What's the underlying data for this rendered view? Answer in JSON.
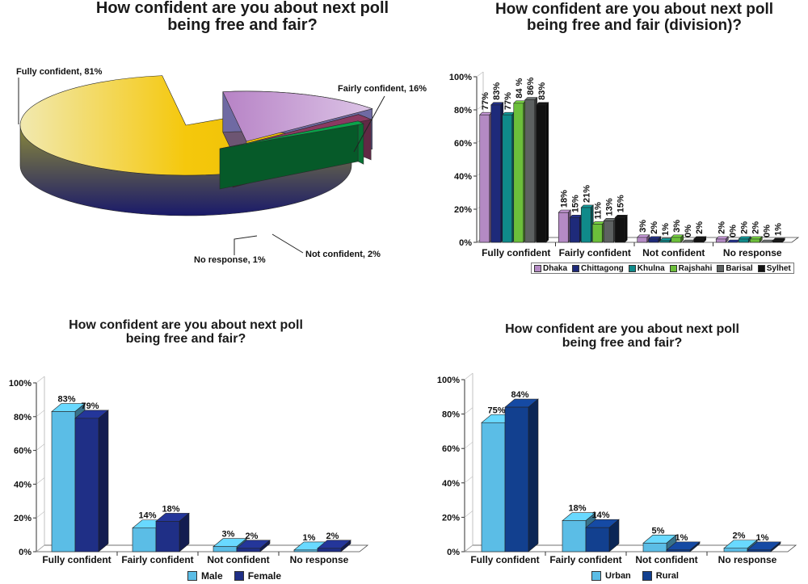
{
  "chart_data": [
    {
      "type": "pie",
      "title": "How confident are you about next poll being free and fair?",
      "slices": [
        {
          "label": "Fully confident, 81%",
          "value": 81,
          "color": "#f2c416"
        },
        {
          "label": "Fairly confident, 16%",
          "value": 16,
          "color": "#c79bd0"
        },
        {
          "label": "Not confident, 2%",
          "value": 2,
          "color": "#8b3a62"
        },
        {
          "label": "No response, 1%",
          "value": 1,
          "color": "#0aa34a"
        }
      ]
    },
    {
      "type": "bar",
      "title": "How confident are you about next poll being free and fair (division)?",
      "categories": [
        "Fully confident",
        "Fairly confident",
        "Not confident",
        "No response"
      ],
      "series": [
        {
          "name": "Dhaka",
          "values": [
            77,
            18,
            3,
            2
          ],
          "color": "#b48ac4"
        },
        {
          "name": "Chittagong",
          "values": [
            83,
            15,
            2,
            0
          ],
          "color": "#1e2a7a"
        },
        {
          "name": "Khulna",
          "values": [
            77,
            21,
            1,
            2
          ],
          "color": "#0f8a8a"
        },
        {
          "name": "Rajshahi",
          "values": [
            84,
            11,
            3,
            2
          ],
          "color": "#6cbf3b"
        },
        {
          "name": "Barisal",
          "values": [
            86,
            13,
            0,
            0
          ],
          "color": "#5d6161"
        },
        {
          "name": "Sylhet",
          "values": [
            83,
            15,
            2,
            1
          ],
          "color": "#111111"
        }
      ],
      "data_labels": [
        [
          "77%",
          "83%",
          "77%",
          "84 %",
          "86%",
          "83%"
        ],
        [
          "18%",
          "15%",
          "21%",
          "11%",
          "13%",
          "15%"
        ],
        [
          "3%",
          "2%",
          "1%",
          "3%",
          "0%",
          "2%"
        ],
        [
          "2%",
          "0%",
          "2%",
          "2%",
          "0%",
          "1%"
        ]
      ],
      "yticks": [
        "0%",
        "20%",
        "40%",
        "60%",
        "80%",
        "100%"
      ],
      "ylim": [
        0,
        100
      ],
      "legend_position": "bottom"
    },
    {
      "type": "bar",
      "title": "How confident are you about next poll being free and fair?",
      "categories": [
        "Fully confident",
        "Fairly confident",
        "Not confident",
        "No response"
      ],
      "series": [
        {
          "name": "Male",
          "values": [
            83,
            14,
            3,
            1
          ],
          "color": "#5bbde6"
        },
        {
          "name": "Female",
          "values": [
            79,
            18,
            2,
            2
          ],
          "color": "#1f2f86"
        }
      ],
      "yticks": [
        "0%",
        "20%",
        "40%",
        "60%",
        "80%",
        "100%"
      ],
      "ylim": [
        0,
        100
      ],
      "legend_position": "bottom"
    },
    {
      "type": "bar",
      "title": "How confident are you about next poll being free and fair?",
      "categories": [
        "Fully confident",
        "Fairly confident",
        "Not confident",
        "No response"
      ],
      "series": [
        {
          "name": "Urban",
          "values": [
            75,
            18,
            5,
            2
          ],
          "color": "#5bbde6"
        },
        {
          "name": "Rural",
          "values": [
            84,
            14,
            1,
            1
          ],
          "color": "#12408f"
        }
      ],
      "yticks": [
        "0%",
        "20%",
        "40%",
        "60%",
        "80%",
        "100%"
      ],
      "ylim": [
        0,
        100
      ],
      "legend_position": "bottom"
    }
  ]
}
